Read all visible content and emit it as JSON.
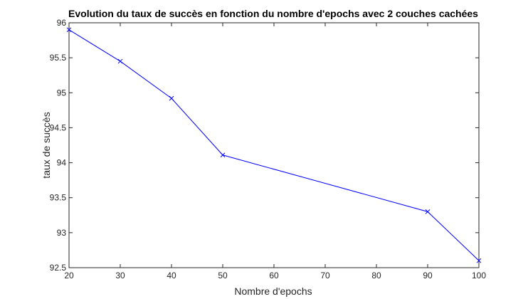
{
  "chart_data": {
    "type": "line",
    "title": "Evolution du taux de succès en fonction du nombre d'epochs avec 2 couches cachées",
    "xlabel": "Nombre d'epochs",
    "ylabel": "taux de succès",
    "xlim": [
      20,
      100
    ],
    "ylim": [
      92.5,
      96
    ],
    "xticks": [
      "20",
      "30",
      "40",
      "50",
      "60",
      "70",
      "80",
      "90",
      "100"
    ],
    "yticks": [
      "92.5",
      "93",
      "93.5",
      "94",
      "94.5",
      "95",
      "95.5",
      "96"
    ],
    "grid": false,
    "marker": "x",
    "series": [
      {
        "x": [
          20,
          30,
          40,
          50,
          90,
          100
        ],
        "values": [
          95.9,
          95.45,
          94.92,
          94.11,
          93.3,
          92.6
        ],
        "color": "#0000ff"
      }
    ]
  }
}
